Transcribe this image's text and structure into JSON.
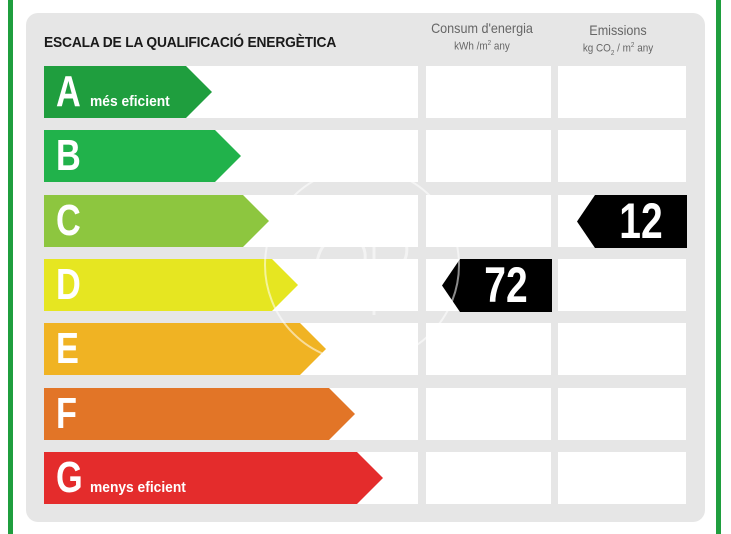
{
  "title": "ESCALA DE LA QUALIFICACIÓ ENERGÈTICA",
  "columns": {
    "consumption": {
      "label": "Consum d'energia",
      "unit_prefix": "kWh /m",
      "unit_sup": "2",
      "unit_suffix": " any"
    },
    "emissions": {
      "label": "Emissions",
      "unit_prefix": "kg CO",
      "unit_sub": "2",
      "unit_mid": " / m",
      "unit_sup": "2",
      "unit_suffix": " any"
    }
  },
  "ratings": [
    {
      "letter": "A",
      "sub": "més eficient",
      "color": "#1f9e3e"
    },
    {
      "letter": "B",
      "sub": "",
      "color": "#21b24b"
    },
    {
      "letter": "C",
      "sub": "",
      "color": "#8dc63f"
    },
    {
      "letter": "D",
      "sub": "",
      "color": "#e6e621"
    },
    {
      "letter": "E",
      "sub": "",
      "color": "#f0b323"
    },
    {
      "letter": "F",
      "sub": "",
      "color": "#e27527"
    },
    {
      "letter": "G",
      "sub": "menys eficient",
      "color": "#e42c2c"
    }
  ],
  "consumption": {
    "value": "72",
    "rating": "D"
  },
  "emissions": {
    "value": "12",
    "rating": "C"
  },
  "indicator_color": "#000000"
}
